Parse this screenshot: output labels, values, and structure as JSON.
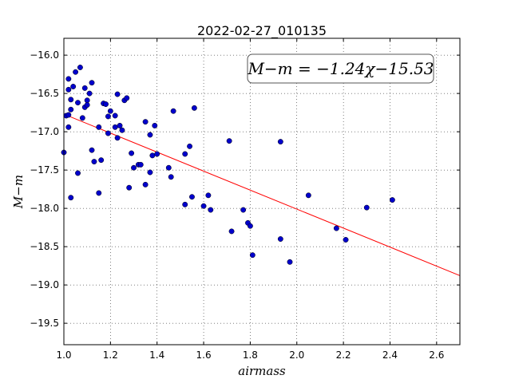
{
  "chart_data": {
    "type": "scatter",
    "title": "2022-02-27_010135",
    "xlabel": "airmass",
    "ylabel": "M−m",
    "xlim": [
      1.0,
      2.7
    ],
    "ylim": [
      -19.78,
      -15.78
    ],
    "xticks": [
      "1.0",
      "1.2",
      "1.4",
      "1.6",
      "1.8",
      "2.0",
      "2.2",
      "2.4",
      "2.6"
    ],
    "yticks": [
      "−16.0",
      "−16.5",
      "−17.0",
      "−17.5",
      "−18.0",
      "−18.5",
      "−19.0",
      "−19.5"
    ],
    "grid": true,
    "annotation": "M−m = −1.24χ−15.53",
    "fit": {
      "slope": -1.24,
      "intercept": -15.53,
      "color": "#ff0000"
    },
    "point_color": "#0000cc",
    "points": [
      [
        1.0,
        -17.27
      ],
      [
        1.01,
        -16.79
      ],
      [
        1.02,
        -16.45
      ],
      [
        1.02,
        -16.31
      ],
      [
        1.02,
        -16.94
      ],
      [
        1.02,
        -16.78
      ],
      [
        1.03,
        -16.58
      ],
      [
        1.03,
        -16.71
      ],
      [
        1.03,
        -17.86
      ],
      [
        1.04,
        -16.41
      ],
      [
        1.05,
        -16.22
      ],
      [
        1.06,
        -17.54
      ],
      [
        1.06,
        -16.62
      ],
      [
        1.07,
        -16.16
      ],
      [
        1.08,
        -16.82
      ],
      [
        1.09,
        -16.68
      ],
      [
        1.09,
        -16.43
      ],
      [
        1.1,
        -16.59
      ],
      [
        1.1,
        -16.65
      ],
      [
        1.11,
        -16.5
      ],
      [
        1.12,
        -17.24
      ],
      [
        1.12,
        -16.36
      ],
      [
        1.13,
        -17.39
      ],
      [
        1.15,
        -17.8
      ],
      [
        1.15,
        -16.94
      ],
      [
        1.16,
        -17.37
      ],
      [
        1.17,
        -16.63
      ],
      [
        1.18,
        -16.64
      ],
      [
        1.19,
        -16.8
      ],
      [
        1.19,
        -17.02
      ],
      [
        1.2,
        -16.73
      ],
      [
        1.22,
        -16.94
      ],
      [
        1.22,
        -16.79
      ],
      [
        1.23,
        -17.08
      ],
      [
        1.23,
        -16.51
      ],
      [
        1.24,
        -16.92
      ],
      [
        1.25,
        -16.98
      ],
      [
        1.26,
        -16.59
      ],
      [
        1.27,
        -16.56
      ],
      [
        1.28,
        -17.73
      ],
      [
        1.29,
        -17.28
      ],
      [
        1.3,
        -17.47
      ],
      [
        1.32,
        -17.43
      ],
      [
        1.33,
        -17.43
      ],
      [
        1.35,
        -17.69
      ],
      [
        1.35,
        -16.87
      ],
      [
        1.37,
        -17.53
      ],
      [
        1.37,
        -17.04
      ],
      [
        1.38,
        -17.31
      ],
      [
        1.39,
        -16.92
      ],
      [
        1.4,
        -17.29
      ],
      [
        1.45,
        -17.47
      ],
      [
        1.46,
        -17.59
      ],
      [
        1.47,
        -16.73
      ],
      [
        1.52,
        -17.95
      ],
      [
        1.52,
        -17.29
      ],
      [
        1.54,
        -17.19
      ],
      [
        1.55,
        -17.85
      ],
      [
        1.56,
        -16.69
      ],
      [
        1.6,
        -17.97
      ],
      [
        1.62,
        -17.83
      ],
      [
        1.63,
        -18.02
      ],
      [
        1.71,
        -17.12
      ],
      [
        1.72,
        -18.3
      ],
      [
        1.77,
        -18.02
      ],
      [
        1.79,
        -18.19
      ],
      [
        1.8,
        -18.23
      ],
      [
        1.81,
        -18.61
      ],
      [
        1.93,
        -17.13
      ],
      [
        1.93,
        -18.4
      ],
      [
        1.97,
        -18.7
      ],
      [
        2.05,
        -17.83
      ],
      [
        2.17,
        -18.26
      ],
      [
        2.21,
        -18.41
      ],
      [
        2.3,
        -17.99
      ],
      [
        2.41,
        -17.89
      ]
    ]
  }
}
